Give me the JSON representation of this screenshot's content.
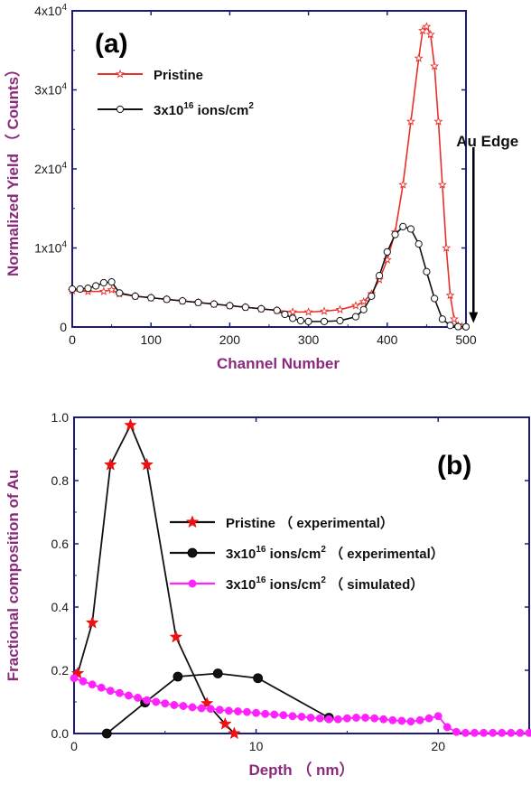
{
  "chart_data": [
    {
      "type": "line",
      "panel_label": "(a)",
      "xlabel": "Channel Number",
      "ylabel": "Normalized Yield （ Counts）",
      "xlim": [
        0,
        500
      ],
      "ylim": [
        0,
        40000
      ],
      "x_ticks": [
        0,
        100,
        200,
        300,
        400,
        500
      ],
      "y_ticks": [
        {
          "value": 0,
          "base": "0",
          "exp": ""
        },
        {
          "value": 10000,
          "base": "1x10",
          "exp": "4"
        },
        {
          "value": 20000,
          "base": "2x10",
          "exp": "4"
        },
        {
          "value": 30000,
          "base": "3x10",
          "exp": "4"
        },
        {
          "value": 40000,
          "base": "4x10",
          "exp": "4"
        }
      ],
      "annotation": {
        "text": "Au Edge",
        "x": 490,
        "y": 25000,
        "arrow_to_y": 500
      },
      "legend_position": "top-left",
      "series": [
        {
          "name": "Pristine",
          "name_sup": "",
          "name_suffix": "",
          "color": "#e8302a",
          "marker": "star-open",
          "x": [
            0,
            20,
            40,
            50,
            60,
            80,
            100,
            120,
            140,
            160,
            180,
            200,
            220,
            240,
            260,
            280,
            300,
            320,
            340,
            360,
            370,
            380,
            390,
            400,
            410,
            420,
            430,
            440,
            445,
            450,
            455,
            460,
            465,
            470,
            475,
            480,
            485,
            490,
            495
          ],
          "y": [
            4600,
            4500,
            4500,
            4700,
            4200,
            3900,
            3700,
            3500,
            3300,
            3100,
            2900,
            2700,
            2500,
            2300,
            2100,
            1900,
            1900,
            2000,
            2200,
            2700,
            3200,
            4200,
            6000,
            8500,
            12000,
            18000,
            26000,
            34000,
            37500,
            38000,
            37000,
            33000,
            26000,
            18000,
            10000,
            4000,
            1000,
            200,
            50
          ]
        },
        {
          "name": "3x10",
          "name_sup": "16",
          "name_suffix": " ions/cm",
          "name_sup2": "2",
          "color": "#111111",
          "marker": "circle-open",
          "x": [
            0,
            10,
            20,
            30,
            40,
            50,
            60,
            80,
            100,
            120,
            140,
            160,
            180,
            200,
            220,
            240,
            260,
            270,
            280,
            290,
            300,
            320,
            340,
            360,
            370,
            380,
            390,
            400,
            410,
            420,
            430,
            440,
            450,
            460,
            470,
            480,
            490,
            500
          ],
          "y": [
            4800,
            4800,
            4900,
            5200,
            5600,
            5700,
            4300,
            3900,
            3700,
            3500,
            3300,
            3100,
            2900,
            2700,
            2500,
            2300,
            2100,
            1600,
            1100,
            800,
            700,
            700,
            800,
            1300,
            2200,
            3900,
            6500,
            9500,
            11700,
            12700,
            12400,
            10500,
            7000,
            3600,
            1000,
            200,
            50,
            20
          ]
        }
      ]
    },
    {
      "type": "line",
      "panel_label": "(b)",
      "xlabel": "Depth （ nm）",
      "ylabel": "Fractional composition of Au",
      "xlim": [
        0,
        25
      ],
      "ylim": [
        0,
        1.0
      ],
      "x_ticks": [
        0,
        10,
        20
      ],
      "y_ticks": [
        {
          "value": 0,
          "base": "0.0",
          "exp": ""
        },
        {
          "value": 0.2,
          "base": "0.2",
          "exp": ""
        },
        {
          "value": 0.4,
          "base": "0.4",
          "exp": ""
        },
        {
          "value": 0.6,
          "base": "0.6",
          "exp": ""
        },
        {
          "value": 0.8,
          "base": "0.8",
          "exp": ""
        },
        {
          "value": 1.0,
          "base": "1.0",
          "exp": ""
        }
      ],
      "legend_position": "center-right",
      "series": [
        {
          "name": "Pristine",
          "name_sup": "",
          "name_suffix": " （ experimental）",
          "color": "#111111",
          "marker_color": "#ee1111",
          "marker": "star-filled",
          "x": [
            0.2,
            1.0,
            2.0,
            3.1,
            4.0,
            5.6,
            7.3,
            8.3,
            8.8
          ],
          "y": [
            0.19,
            0.35,
            0.85,
            0.975,
            0.85,
            0.305,
            0.095,
            0.03,
            0.0
          ]
        },
        {
          "name": "3x10",
          "name_sup": "16",
          "name_suffix": " ions/cm",
          "name_sup2": "2",
          "name_suffix2": " （ experimental）",
          "color": "#111111",
          "marker_color": "#111111",
          "marker": "circle-filled",
          "x": [
            1.8,
            3.9,
            5.7,
            7.9,
            10.1,
            14.0
          ],
          "y": [
            0.0,
            0.098,
            0.18,
            0.19,
            0.175,
            0.05
          ]
        },
        {
          "name": "3x10",
          "name_sup": "16",
          "name_suffix": " ions/cm",
          "name_sup2": "2",
          "name_suffix2": " （ simulated）",
          "color": "#ff22ff",
          "marker_color": "#ff22ff",
          "marker": "circle-filled-small",
          "x": [
            0,
            0.5,
            1,
            1.5,
            2,
            2.5,
            3,
            3.5,
            4,
            4.5,
            5,
            5.5,
            6,
            6.5,
            7,
            7.5,
            8,
            8.5,
            9,
            9.5,
            10,
            10.5,
            11,
            11.5,
            12,
            12.5,
            13,
            13.5,
            14,
            14.5,
            15,
            15.5,
            16,
            16.5,
            17,
            17.5,
            18,
            18.5,
            19,
            19.5,
            20,
            20.5,
            21,
            21.5,
            22,
            22.5,
            23,
            23.5,
            24,
            24.5,
            25
          ],
          "y": [
            0.175,
            0.165,
            0.155,
            0.145,
            0.135,
            0.128,
            0.12,
            0.113,
            0.105,
            0.1,
            0.095,
            0.09,
            0.087,
            0.083,
            0.08,
            0.078,
            0.075,
            0.072,
            0.07,
            0.068,
            0.065,
            0.062,
            0.06,
            0.058,
            0.055,
            0.053,
            0.05,
            0.048,
            0.045,
            0.045,
            0.048,
            0.05,
            0.05,
            0.048,
            0.045,
            0.042,
            0.04,
            0.038,
            0.042,
            0.048,
            0.055,
            0.02,
            0.005,
            0.002,
            0.002,
            0.002,
            0.002,
            0.002,
            0.002,
            0.002,
            0.002
          ]
        }
      ]
    }
  ]
}
